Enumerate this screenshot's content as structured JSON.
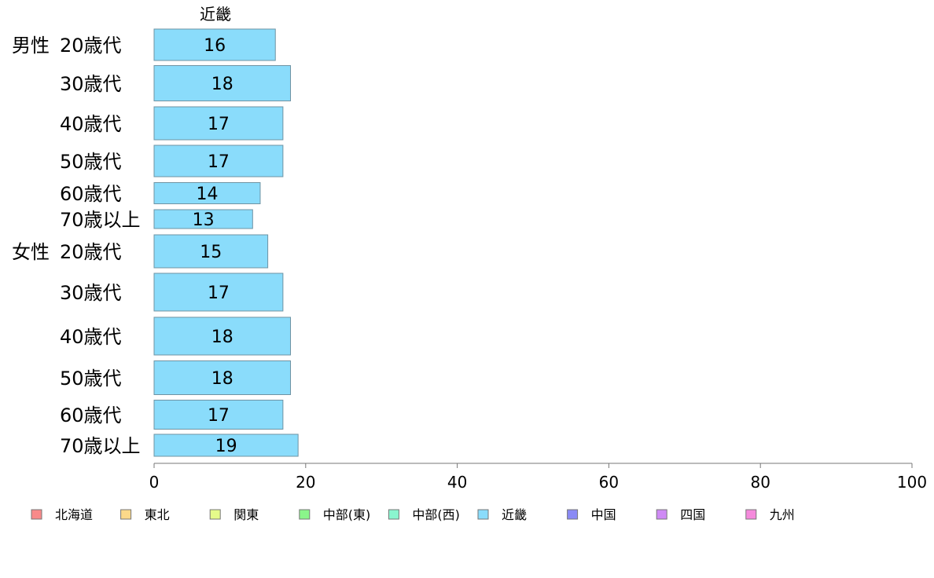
{
  "chart_data": {
    "type": "bar",
    "orientation": "horizontal",
    "title": "近畿",
    "groups": [
      "男性",
      "女性"
    ],
    "categories": [
      "20歳代",
      "30歳代",
      "40歳代",
      "50歳代",
      "60歳代",
      "70歳以上",
      "20歳代",
      "30歳代",
      "40歳代",
      "50歳代",
      "60歳代",
      "70歳以上"
    ],
    "values": [
      16,
      18,
      17,
      17,
      14,
      13,
      15,
      17,
      18,
      18,
      17,
      19
    ],
    "xlim": [
      0,
      100
    ],
    "xticks": [
      "0",
      "20",
      "40",
      "60",
      "80",
      "100"
    ],
    "grid": false,
    "legend_position": "bottom",
    "legend": [
      {
        "name": "北海道",
        "color": "#f88a8a"
      },
      {
        "name": "東北",
        "color": "#fcd98a"
      },
      {
        "name": "関東",
        "color": "#e5fb8a"
      },
      {
        "name": "中部(東)",
        "color": "#8af58a"
      },
      {
        "name": "中部(西)",
        "color": "#8af5cf"
      },
      {
        "name": "近畿",
        "color": "#8adcfb"
      },
      {
        "name": "中国",
        "color": "#8a8af5"
      },
      {
        "name": "四国",
        "color": "#cf8af5"
      },
      {
        "name": "九州",
        "color": "#f58adc"
      }
    ],
    "bar_color": "#8adcfb"
  }
}
